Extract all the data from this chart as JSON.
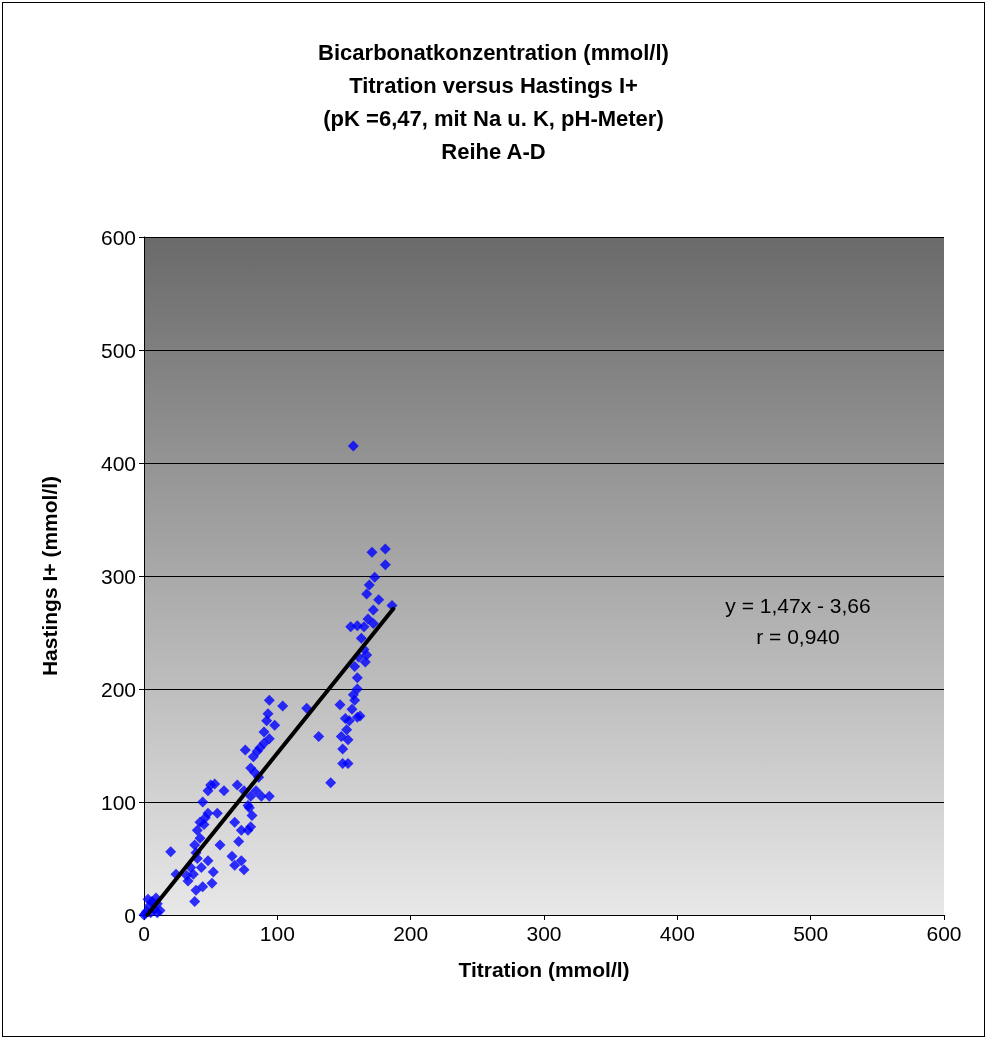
{
  "chart_data": {
    "type": "scatter",
    "title": "Bicarbonatkonzentration (mmol/l)\nTitration versus Hastings I+\n(pK =6,47, mit Na u. K, pH-Meter)\nReihe A-D",
    "xlabel": "Titration (mmol/l)",
    "ylabel": "Hastings I+ (mmol/l)",
    "xlim": [
      0,
      600
    ],
    "ylim": [
      0,
      600
    ],
    "xticks": [
      0,
      100,
      200,
      300,
      400,
      500,
      600
    ],
    "yticks": [
      0,
      100,
      200,
      300,
      400,
      500,
      600
    ],
    "grid": "y",
    "marker": "diamond",
    "annotations": [
      "y = 1,47x - 3,66",
      "r = 0,940"
    ],
    "series": [
      {
        "color": "#0000ff",
        "x": [
          157,
          171,
          181,
          181,
          173,
          169,
          167,
          176,
          172,
          186,
          168,
          172,
          165,
          155,
          160,
          163,
          165,
          161,
          167,
          166,
          158,
          160,
          160,
          157,
          158,
          156,
          154,
          160,
          162,
          147,
          151,
          152,
          148,
          153,
          149,
          149,
          153,
          140,
          131,
          122,
          104,
          98,
          94,
          93,
          92,
          90,
          94,
          90,
          87,
          85,
          82,
          76,
          80,
          83,
          86,
          84,
          80,
          88,
          94,
          78,
          79,
          81,
          75,
          70,
          68,
          73,
          71,
          80,
          78,
          66,
          73,
          75,
          68,
          57,
          50,
          53,
          48,
          44,
          48,
          45,
          46,
          42,
          40,
          42,
          38,
          39,
          40,
          48,
          43,
          35,
          37,
          32,
          33,
          20,
          24,
          39,
          38,
          44,
          52,
          51,
          55,
          60,
          0,
          2,
          4,
          6,
          8,
          10,
          3,
          7,
          9,
          1,
          5,
          12,
          10
        ],
        "values": [
          415,
          321,
          324,
          310,
          299,
          292,
          284,
          279,
          270,
          274,
          262,
          258,
          255,
          255,
          256,
          245,
          235,
          228,
          230,
          224,
          220,
          210,
          200,
          195,
          190,
          182,
          172,
          175,
          176,
          186,
          174,
          164,
          158,
          155,
          147,
          134,
          134,
          117,
          158,
          183,
          185,
          168,
          190,
          178,
          172,
          162,
          156,
          152,
          148,
          145,
          140,
          146,
          130,
          126,
          122,
          110,
          105,
          105,
          105,
          97,
          95,
          88,
          110,
          115,
          82,
          75,
          65,
          78,
          75,
          52,
          48,
          40,
          44,
          62,
          115,
          116,
          110,
          100,
          90,
          80,
          86,
          82,
          75,
          68,
          62,
          55,
          50,
          48,
          42,
          42,
          36,
          35,
          30,
          56,
          36,
          22,
          12,
          25,
          38,
          28,
          90,
          110,
          0,
          3,
          8,
          12,
          5,
          2,
          14,
          10,
          15,
          1,
          2,
          4,
          10
        ]
      },
      {
        "type": "line",
        "color": "#000000",
        "marker": "none",
        "line_style": "solid",
        "x": [
          2.5,
          187
        ],
        "values": [
          0,
          271
        ]
      }
    ]
  }
}
